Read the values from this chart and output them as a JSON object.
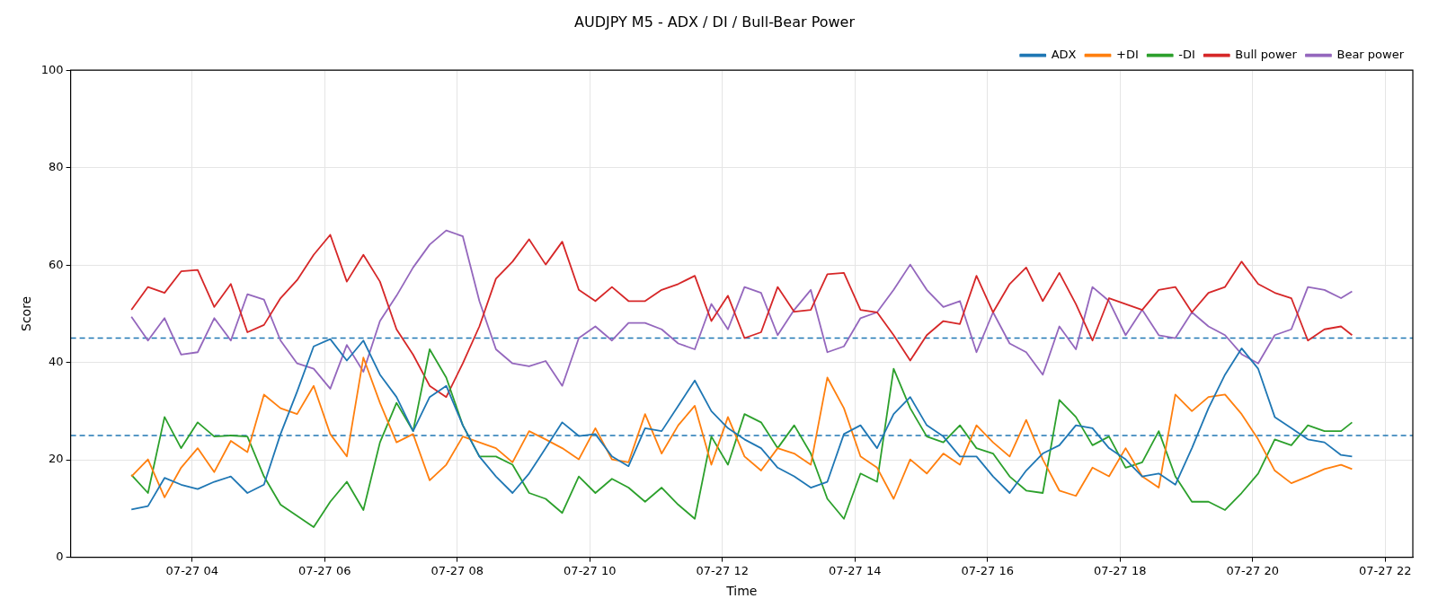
{
  "chart_data": {
    "type": "line",
    "title": "AUDJPY M5 - ADX / DI / Bull-Bear Power",
    "xlabel": "Time",
    "ylabel": "Score",
    "x": [
      "--07-27T03:05",
      "--07-27T03:20",
      "--07-27T03:35",
      "--07-27T03:50",
      "--07-27T04:05",
      "--07-27T04:20",
      "--07-27T04:35",
      "--07-27T04:50",
      "--07-27T05:05",
      "--07-27T05:20",
      "--07-27T05:35",
      "--07-27T05:50",
      "--07-27T06:05",
      "--07-27T06:20",
      "--07-27T06:35",
      "--07-27T06:50",
      "--07-27T07:05",
      "--07-27T07:20",
      "--07-27T07:35",
      "--07-27T07:50",
      "--07-27T08:05",
      "--07-27T08:20",
      "--07-27T08:35",
      "--07-27T08:50",
      "--07-27T09:05",
      "--07-27T09:20",
      "--07-27T09:35",
      "--07-27T09:50",
      "--07-27T10:05",
      "--07-27T10:20",
      "--07-27T10:35",
      "--07-27T10:50",
      "--07-27T11:05",
      "--07-27T11:20",
      "--07-27T11:35",
      "--07-27T11:50",
      "--07-27T12:05",
      "--07-27T12:20",
      "--07-27T12:35",
      "--07-27T12:50",
      "--07-27T13:05",
      "--07-27T13:20",
      "--07-27T13:35",
      "--07-27T13:50",
      "--07-27T14:05",
      "--07-27T14:20",
      "--07-27T14:35",
      "--07-27T14:50",
      "--07-27T15:05",
      "--07-27T15:20",
      "--07-27T15:35",
      "--07-27T15:50",
      "--07-27T16:05",
      "--07-27T16:20",
      "--07-27T16:35",
      "--07-27T16:50",
      "--07-27T17:05",
      "--07-27T17:20",
      "--07-27T17:35",
      "--07-27T17:50",
      "--07-27T18:05",
      "--07-27T18:20",
      "--07-27T18:35",
      "--07-27T18:50",
      "--07-27T19:05",
      "--07-27T19:20",
      "--07-27T19:35",
      "--07-27T19:50",
      "--07-27T20:05",
      "--07-27T20:20",
      "--07-27T20:35",
      "--07-27T20:50",
      "--07-27T21:05",
      "--07-27T21:20",
      "--07-27T21:30"
    ],
    "series": [
      {
        "name": "ADX",
        "color": "#1f77b4",
        "values": [
          9.8,
          10.5,
          16.3,
          14.9,
          14,
          15.5,
          16.6,
          13.2,
          14.9,
          25.3,
          34,
          43.3,
          44.8,
          40.4,
          44.5,
          37.5,
          32.9,
          25.9,
          32.9,
          35.2,
          27.1,
          20.7,
          16.6,
          13.2,
          17.2,
          22.4,
          27.7,
          24.9,
          25.3,
          20.7,
          18.7,
          26.5,
          25.9,
          31.1,
          36.3,
          30,
          26.5,
          24.2,
          22.4,
          18.4,
          16.6,
          14.3,
          15.5,
          25.3,
          27.1,
          22.4,
          29.4,
          32.9,
          27.1,
          24.8,
          20.7,
          20.7,
          16.6,
          13.2,
          17.8,
          21.3,
          23,
          27.1,
          26.5,
          22.4,
          20.1,
          16.6,
          17.2,
          14.9,
          22.4,
          30.6,
          37.5,
          42.9,
          38.7,
          28.8,
          26.5,
          24.2,
          23.6,
          21,
          20.7
        ]
      },
      {
        "name": "+DI",
        "color": "#ff7f0e",
        "values": [
          16.6,
          20.1,
          12.3,
          18.4,
          22.4,
          17.5,
          23.9,
          21.6,
          33.4,
          30.6,
          29.4,
          35.2,
          25.3,
          20.7,
          41,
          31.7,
          23.6,
          25.3,
          15.8,
          19,
          24.8,
          23.6,
          22.4,
          19.5,
          25.9,
          24.2,
          22.4,
          20.1,
          26.5,
          20.1,
          19.5,
          29.4,
          21.3,
          27.1,
          31.1,
          19,
          28.8,
          20.7,
          17.8,
          22.4,
          21.3,
          19,
          36.9,
          30.6,
          20.7,
          18.4,
          12,
          20.1,
          17.2,
          21.3,
          19,
          27.1,
          23.6,
          20.7,
          28.2,
          20.1,
          13.7,
          12.6,
          18.4,
          16.6,
          22.4,
          16.6,
          14.3,
          33.4,
          30,
          32.9,
          33.4,
          29.4,
          24.2,
          17.8,
          15.2,
          16.6,
          18.1,
          19,
          18.1
        ]
      },
      {
        "name": "-DI",
        "color": "#2ca02c",
        "values": [
          16.9,
          13.2,
          28.8,
          22.4,
          27.7,
          24.8,
          25,
          24.8,
          16.6,
          10.8,
          8.5,
          6.2,
          11.4,
          15.5,
          9.7,
          23.6,
          31.7,
          25.9,
          42.7,
          36.9,
          27.1,
          20.7,
          20.7,
          19,
          13.2,
          12,
          9.1,
          16.6,
          13.2,
          16.1,
          14.3,
          11.4,
          14.3,
          10.8,
          7.9,
          24.8,
          19,
          29.4,
          27.7,
          22.4,
          27.1,
          21.3,
          12,
          7.9,
          17.2,
          15.5,
          38.7,
          30.6,
          24.8,
          23.6,
          27.1,
          22.4,
          21.3,
          16.6,
          13.7,
          13.2,
          32.3,
          28.8,
          23,
          24.8,
          18.4,
          19.5,
          25.9,
          16.6,
          11.4,
          11.4,
          9.7,
          13.2,
          17.2,
          24.2,
          23,
          27.1,
          25.9,
          25.9,
          27.7
        ]
      },
      {
        "name": "Bull power",
        "color": "#d62728",
        "values": [
          50.8,
          55.5,
          54.3,
          58.7,
          59,
          51.4,
          56.1,
          46.2,
          47.7,
          53.2,
          56.9,
          62.1,
          66.2,
          56.6,
          62.1,
          56.6,
          46.8,
          41.6,
          35.2,
          32.9,
          39.8,
          47.4,
          57.2,
          60.7,
          65.3,
          60.1,
          64.8,
          54.9,
          52.6,
          55.5,
          52.6,
          52.6,
          54.9,
          56.1,
          57.8,
          48.5,
          53.7,
          45,
          46.2,
          55.5,
          50.4,
          50.8,
          58.1,
          58.4,
          50.8,
          50.3,
          45.6,
          40.4,
          45.6,
          48.5,
          47.9,
          57.8,
          50.3,
          56.1,
          59.5,
          52.6,
          58.4,
          52,
          44.5,
          53.2,
          52,
          50.8,
          54.9,
          55.5,
          50.3,
          54.3,
          55.5,
          60.7,
          56.1,
          54.3,
          53.2,
          44.5,
          46.8,
          47.4,
          45.6
        ]
      },
      {
        "name": "Bear power",
        "color": "#9467bd",
        "values": [
          49.4,
          44.5,
          49.1,
          41.6,
          42.1,
          49.1,
          44.5,
          54,
          52.9,
          44.5,
          39.8,
          38.7,
          34.6,
          43.6,
          38.1,
          48.5,
          53.7,
          59.5,
          64.2,
          67.1,
          65.9,
          52.6,
          42.7,
          39.8,
          39.2,
          40.3,
          35.2,
          45,
          47.4,
          44.5,
          48.1,
          48.1,
          46.8,
          43.9,
          42.7,
          52,
          46.8,
          55.5,
          54.3,
          45.6,
          50.8,
          54.9,
          42.1,
          43.3,
          49.1,
          50.3,
          54.9,
          60.1,
          54.9,
          51.4,
          52.6,
          42.1,
          50.3,
          43.9,
          42.1,
          37.5,
          47.4,
          42.7,
          55.5,
          52.6,
          45.6,
          50.8,
          45.6,
          45,
          50.3,
          47.4,
          45.6,
          41.7,
          39.8,
          45.6,
          46.8,
          55.5,
          54.9,
          53.2,
          54.6
        ]
      }
    ],
    "xlim": [
      "--07-27T02:10",
      "--07-27T22:25"
    ],
    "xticks": [
      {
        "value": "--07-27T04:00",
        "label": "07-27 04"
      },
      {
        "value": "--07-27T06:00",
        "label": "07-27 06"
      },
      {
        "value": "--07-27T08:00",
        "label": "07-27 08"
      },
      {
        "value": "--07-27T10:00",
        "label": "07-27 10"
      },
      {
        "value": "--07-27T12:00",
        "label": "07-27 12"
      },
      {
        "value": "--07-27T14:00",
        "label": "07-27 14"
      },
      {
        "value": "--07-27T16:00",
        "label": "07-27 16"
      },
      {
        "value": "--07-27T18:00",
        "label": "07-27 18"
      },
      {
        "value": "--07-27T20:00",
        "label": "07-27 20"
      },
      {
        "value": "--07-27T22:00",
        "label": "07-27 22"
      }
    ],
    "ylim": [
      0,
      100
    ],
    "yticks": [
      0,
      20,
      40,
      60,
      80,
      100
    ],
    "ref_lines": [
      {
        "axis": "y",
        "value": 45,
        "color": "#1f77b4",
        "line_style": "dashed"
      },
      {
        "axis": "y",
        "value": 25,
        "color": "#1f77b4",
        "line_style": "dashed"
      }
    ],
    "grid": true,
    "legend": "top right",
    "marker": "none",
    "line_style": "solid"
  }
}
